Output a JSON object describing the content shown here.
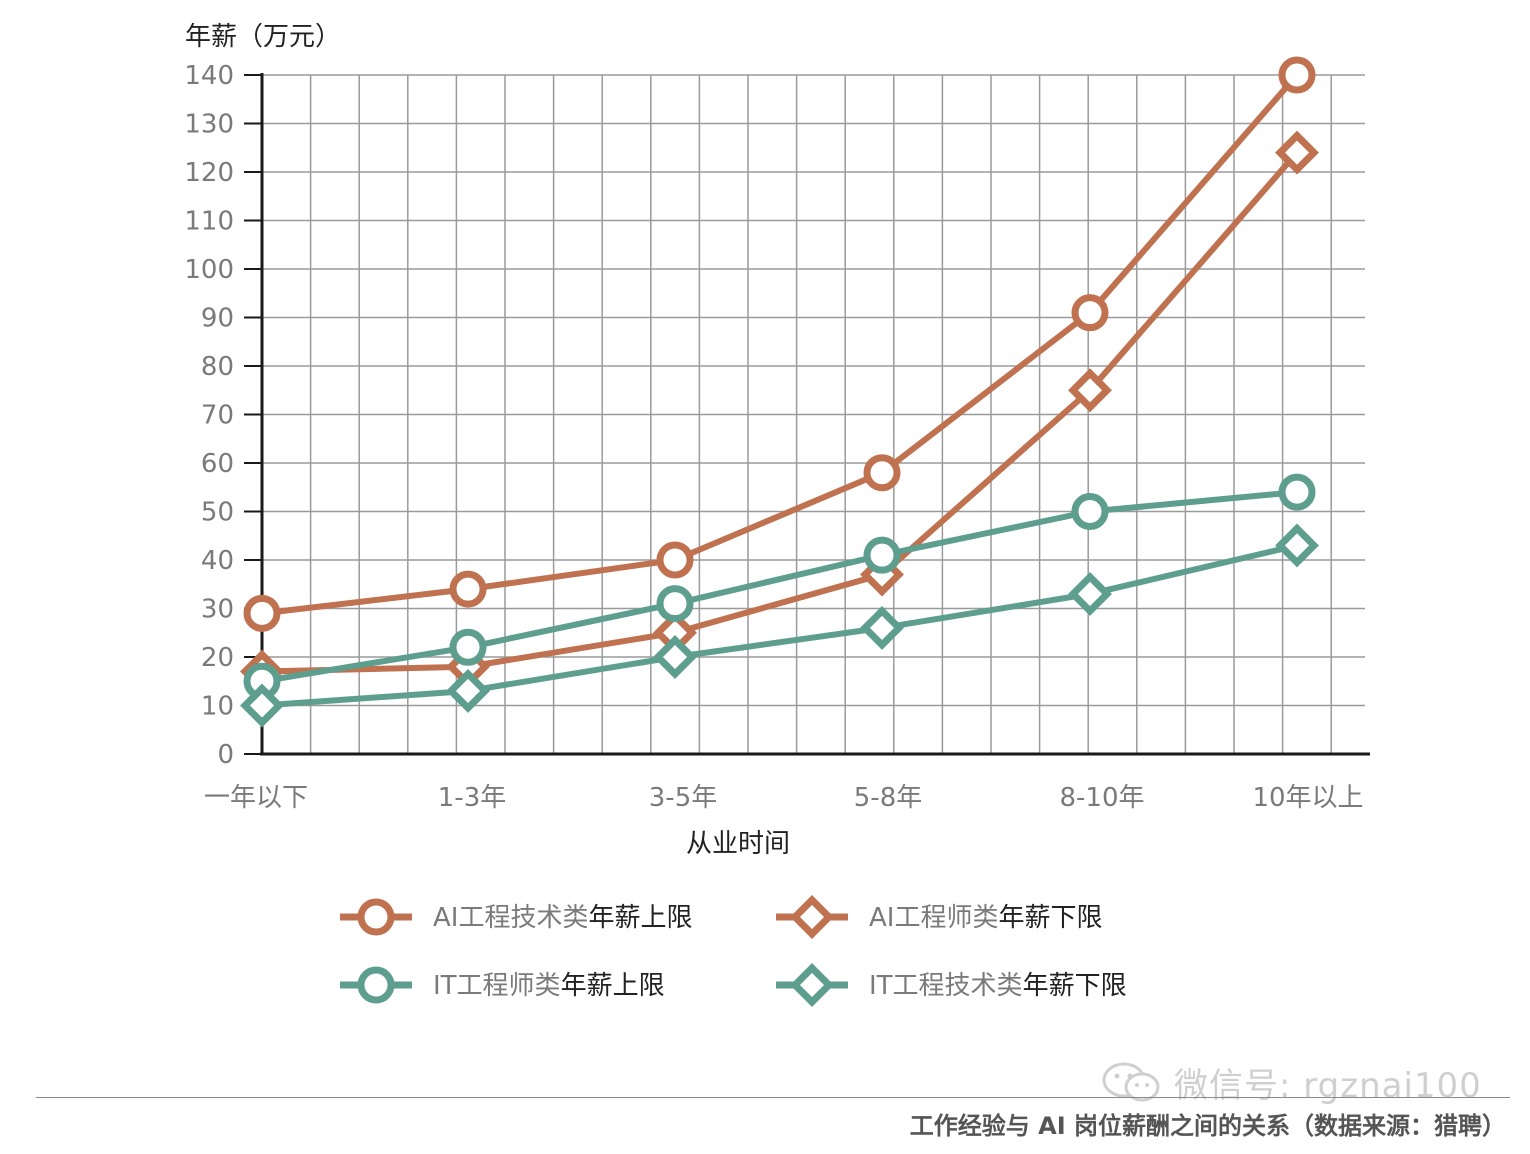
{
  "chart_data": {
    "type": "line",
    "ylabel": "年薪（万元）",
    "xlabel": "从业时间",
    "categories": [
      "一年以下",
      "1-3年",
      "3-5年",
      "5-8年",
      "8-10年",
      "10年以上"
    ],
    "ylim": [
      0,
      140
    ],
    "yticks": [
      0,
      10,
      20,
      30,
      40,
      50,
      60,
      70,
      80,
      90,
      100,
      110,
      120,
      130,
      140
    ],
    "grid": true,
    "series": [
      {
        "name": "AI工程技术类年薪上限",
        "name_gray": "AI工程技术类",
        "name_dark": "年薪上限",
        "marker": "circle",
        "color": "#c0714f",
        "values": [
          29,
          34,
          40,
          58,
          91,
          140
        ]
      },
      {
        "name": "AI工程师类年薪下限",
        "name_gray": "AI工程师类",
        "name_dark": "年薪下限",
        "marker": "diamond",
        "color": "#c0714f",
        "values": [
          17,
          18,
          25,
          37,
          75,
          124
        ]
      },
      {
        "name": "IT工程师类年薪上限",
        "name_gray": "IT工程师类",
        "name_dark": "年薪上限",
        "marker": "circle",
        "color": "#5e9e8e",
        "values": [
          15,
          22,
          31,
          41,
          50,
          54
        ]
      },
      {
        "name": "IT工程技术类年薪下限",
        "name_gray": "IT工程技术类",
        "name_dark": "年薪下限",
        "marker": "diamond",
        "color": "#5e9e8e",
        "values": [
          10,
          13,
          20,
          26,
          33,
          43
        ]
      }
    ]
  },
  "watermark": {
    "text": "微信号: rgznai100",
    "icon": "wechat-icon"
  },
  "caption": "工作经验与 AI 岗位薪酬之间的关系（数据来源：猎聘）"
}
